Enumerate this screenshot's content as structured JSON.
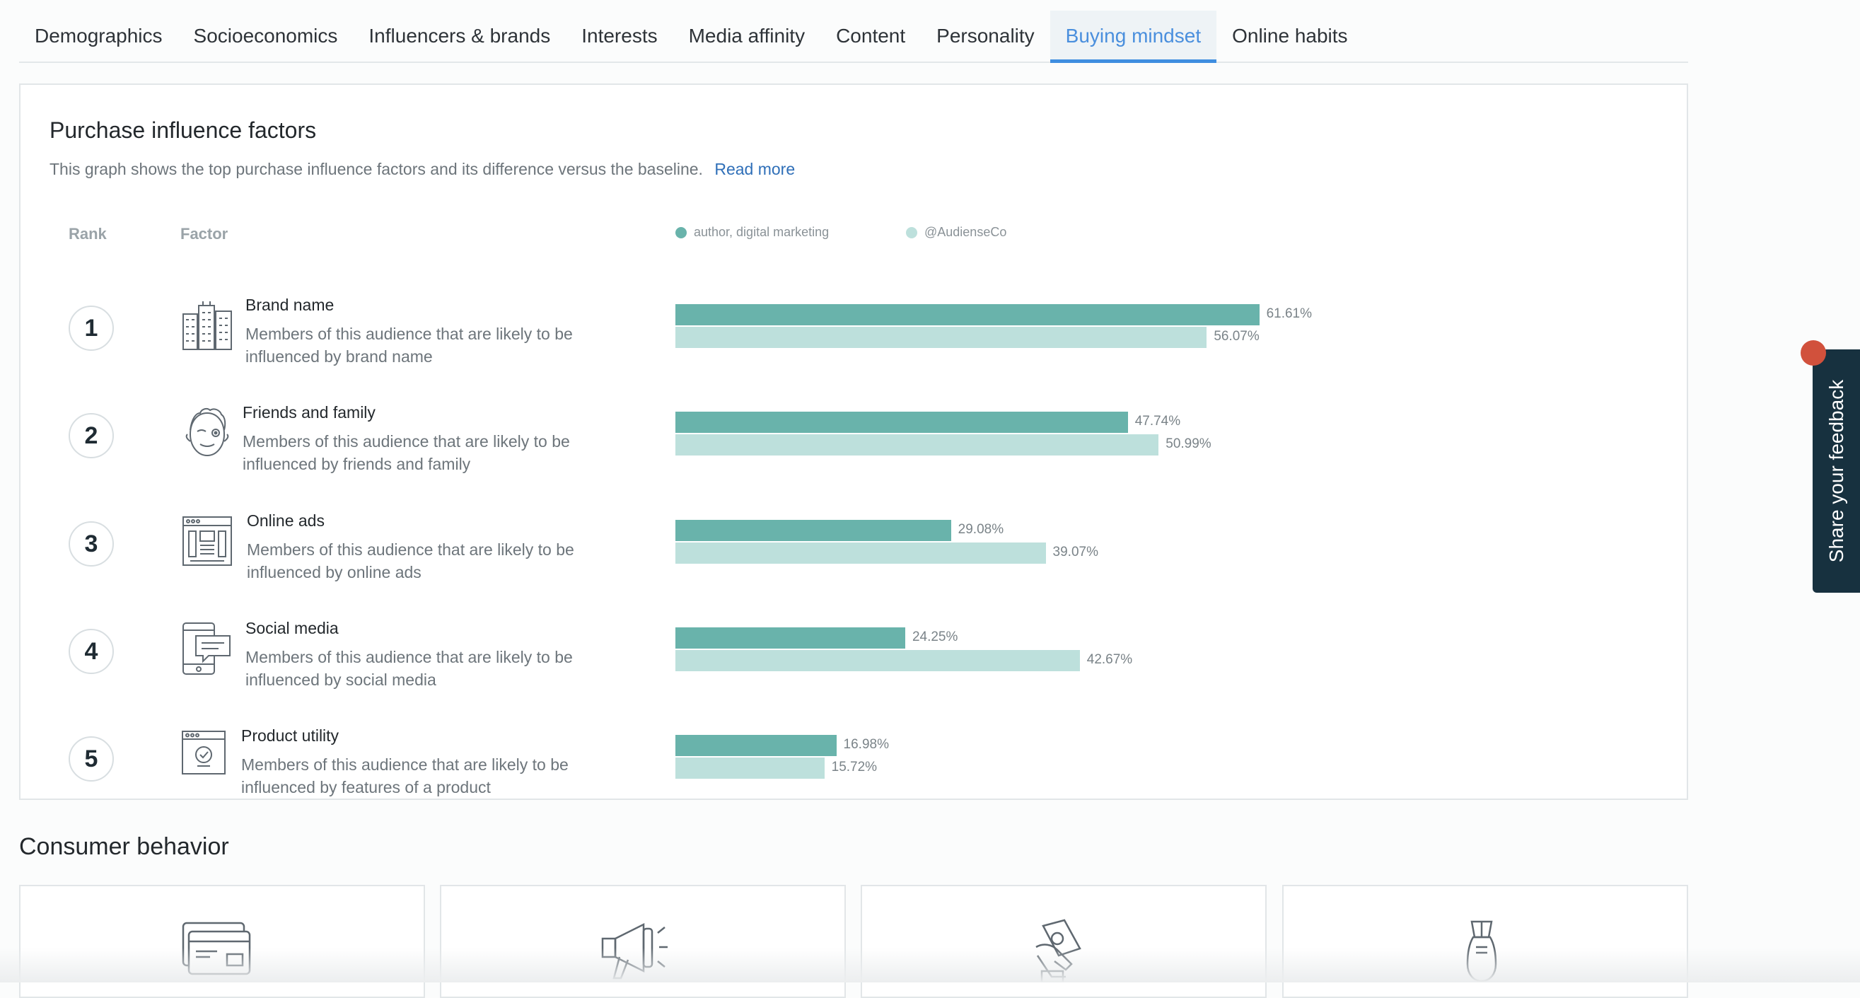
{
  "tabs": [
    {
      "label": "Demographics"
    },
    {
      "label": "Socioeconomics"
    },
    {
      "label": "Influencers & brands"
    },
    {
      "label": "Interests"
    },
    {
      "label": "Media affinity"
    },
    {
      "label": "Content"
    },
    {
      "label": "Personality"
    },
    {
      "label": "Buying mindset",
      "active": true
    },
    {
      "label": "Online habits"
    }
  ],
  "card": {
    "title": "Purchase influence factors",
    "description": "This graph shows the top purchase influence factors and its difference versus the baseline.",
    "read_more": "Read more",
    "col_rank": "Rank",
    "col_factor": "Factor",
    "legend": [
      {
        "label": "author, digital marketing",
        "color": "#69b3ab"
      },
      {
        "label": "@AudienseCo",
        "color": "#bde0dc"
      }
    ]
  },
  "chart_data": {
    "type": "bar",
    "categories": [
      "Brand name",
      "Friends and family",
      "Online ads",
      "Social media",
      "Product utility"
    ],
    "series": [
      {
        "name": "author, digital marketing",
        "values": [
          61.61,
          47.74,
          29.08,
          24.25,
          16.98
        ]
      },
      {
        "name": "@AudienseCo",
        "values": [
          56.07,
          50.99,
          39.07,
          42.67,
          15.72
        ]
      }
    ],
    "value_labels": [
      [
        "61.61%",
        "56.07%"
      ],
      [
        "47.74%",
        "50.99%"
      ],
      [
        "29.08%",
        "39.07%"
      ],
      [
        "24.25%",
        "42.67%"
      ],
      [
        "16.98%",
        "15.72%"
      ]
    ]
  },
  "factors": [
    {
      "rank": "1",
      "name": "Brand name",
      "desc_line1": "Members of this audience that are likely to be",
      "desc_line2": "influenced by brand name",
      "icon": "buildings-icon"
    },
    {
      "rank": "2",
      "name": "Friends and family",
      "desc_line1": "Members of this audience that are likely to be",
      "desc_line2": "influenced by friends and family",
      "icon": "winking-face-icon"
    },
    {
      "rank": "3",
      "name": "Online ads",
      "desc_line1": "Members of this audience that are likely to be",
      "desc_line2": "influenced by online ads",
      "icon": "browser-ad-icon"
    },
    {
      "rank": "4",
      "name": "Social media",
      "desc_line1": "Members of this audience that are likely to be",
      "desc_line2": "influenced by social media",
      "icon": "phone-chat-icon"
    },
    {
      "rank": "5",
      "name": "Product utility",
      "desc_line1": "Members of this audience that are likely to be",
      "desc_line2": "influenced by features of a product",
      "icon": "browser-check-icon"
    }
  ],
  "consumer_behavior": {
    "title": "Consumer behavior",
    "cards": [
      {
        "icon": "credit-cards-icon"
      },
      {
        "icon": "megaphone-icon"
      },
      {
        "icon": "money-hand-icon"
      },
      {
        "icon": "bomb-icon"
      }
    ]
  },
  "feedback": {
    "label": "Share your feedback"
  }
}
